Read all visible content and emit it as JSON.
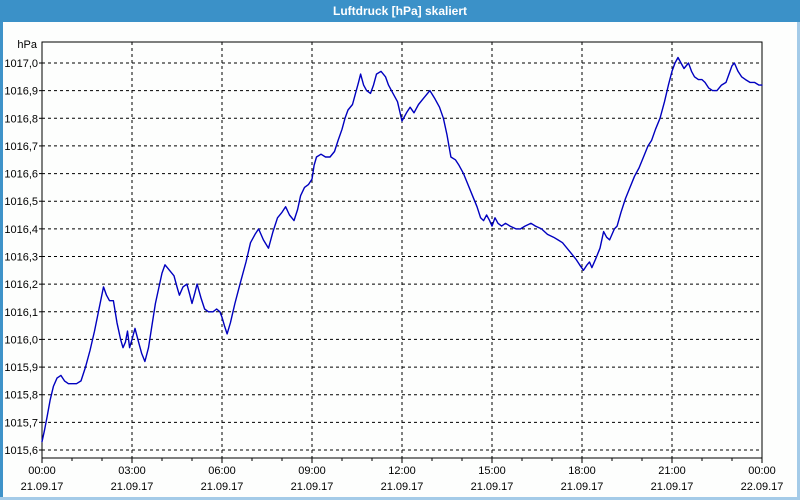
{
  "window": {
    "title": "Luftdruck [hPa] skaliert"
  },
  "colors": {
    "titlebar_bg": "#3b91c8",
    "titlebar_text": "#ffffff",
    "frame_left": "#3f93c9",
    "frame_light": "#a4cbe8",
    "chart_bg": "#fdfefd",
    "plot_border": "#000000",
    "grid": "#000000",
    "label_text": "#000000",
    "line": "#0000bf"
  },
  "chart_data": {
    "type": "line",
    "title": "Luftdruck [hPa] skaliert",
    "ylabel_unit": "hPa",
    "y_axis": {
      "ylim": [
        1015.6,
        1017.0
      ],
      "tick_step": 0.1,
      "decimal_separator": ",",
      "tick_labels": [
        "1015,6",
        "1015,7",
        "1015,8",
        "1015,9",
        "1016,0",
        "1016,1",
        "1016,2",
        "1016,3",
        "1016,4",
        "1016,5",
        "1016,6",
        "1016,7",
        "1016,8",
        "1016,9",
        "1017,0"
      ]
    },
    "x_axis": {
      "xlim_hours": [
        0,
        24
      ],
      "major_tick_every_hours": 3,
      "minor_tick_every_hours": 1,
      "ticks": [
        {
          "hour": 0,
          "time": "00:00",
          "date": "21.09.17"
        },
        {
          "hour": 3,
          "time": "03:00",
          "date": "21.09.17"
        },
        {
          "hour": 6,
          "time": "06:00",
          "date": "21.09.17"
        },
        {
          "hour": 9,
          "time": "09:00",
          "date": "21.09.17"
        },
        {
          "hour": 12,
          "time": "12:00",
          "date": "21.09.17"
        },
        {
          "hour": 15,
          "time": "15:00",
          "date": "21.09.17"
        },
        {
          "hour": 18,
          "time": "18:00",
          "date": "21.09.17"
        },
        {
          "hour": 21,
          "time": "21:00",
          "date": "21.09.17"
        },
        {
          "hour": 24,
          "time": "00:00",
          "date": "22.09.17"
        }
      ]
    },
    "grid": {
      "horizontal": true,
      "vertical": true,
      "style": "dashed"
    },
    "legend": "none",
    "series": [
      {
        "name": "Luftdruck",
        "color": "#0000bf",
        "points_hour_hpa": [
          [
            0,
            1015.63
          ],
          [
            0.08,
            1015.67
          ],
          [
            0.17,
            1015.72
          ],
          [
            0.27,
            1015.78
          ],
          [
            0.38,
            1015.83
          ],
          [
            0.5,
            1015.86
          ],
          [
            0.63,
            1015.87
          ],
          [
            0.75,
            1015.85
          ],
          [
            0.88,
            1015.84
          ],
          [
            1,
            1015.84
          ],
          [
            1.15,
            1015.84
          ],
          [
            1.3,
            1015.85
          ],
          [
            1.45,
            1015.9
          ],
          [
            1.6,
            1015.96
          ],
          [
            1.75,
            1016.03
          ],
          [
            1.9,
            1016.11
          ],
          [
            2.05,
            1016.19
          ],
          [
            2.15,
            1016.16
          ],
          [
            2.25,
            1016.14
          ],
          [
            2.38,
            1016.14
          ],
          [
            2.5,
            1016.06
          ],
          [
            2.62,
            1016.0
          ],
          [
            2.7,
            1015.97
          ],
          [
            2.78,
            1015.99
          ],
          [
            2.85,
            1016.03
          ],
          [
            2.92,
            1015.97
          ],
          [
            3.0,
            1016.0
          ],
          [
            3.1,
            1016.04
          ],
          [
            3.22,
            1015.99
          ],
          [
            3.32,
            1015.95
          ],
          [
            3.43,
            1015.92
          ],
          [
            3.55,
            1015.97
          ],
          [
            3.65,
            1016.04
          ],
          [
            3.78,
            1016.13
          ],
          [
            3.9,
            1016.19
          ],
          [
            4.0,
            1016.24
          ],
          [
            4.1,
            1016.27
          ],
          [
            4.25,
            1016.25
          ],
          [
            4.4,
            1016.23
          ],
          [
            4.5,
            1016.19
          ],
          [
            4.58,
            1016.16
          ],
          [
            4.7,
            1016.19
          ],
          [
            4.83,
            1016.2
          ],
          [
            4.93,
            1016.16
          ],
          [
            5.0,
            1016.13
          ],
          [
            5.1,
            1016.17
          ],
          [
            5.17,
            1016.2
          ],
          [
            5.3,
            1016.15
          ],
          [
            5.42,
            1016.11
          ],
          [
            5.55,
            1016.1
          ],
          [
            5.7,
            1016.1
          ],
          [
            5.82,
            1016.11
          ],
          [
            5.93,
            1016.1
          ],
          [
            6.0,
            1016.08
          ],
          [
            6.08,
            1016.05
          ],
          [
            6.17,
            1016.02
          ],
          [
            6.28,
            1016.06
          ],
          [
            6.43,
            1016.13
          ],
          [
            6.6,
            1016.2
          ],
          [
            6.8,
            1016.28
          ],
          [
            6.95,
            1016.35
          ],
          [
            7.1,
            1016.38
          ],
          [
            7.22,
            1016.4
          ],
          [
            7.38,
            1016.36
          ],
          [
            7.55,
            1016.33
          ],
          [
            7.7,
            1016.39
          ],
          [
            7.85,
            1016.44
          ],
          [
            8.0,
            1016.46
          ],
          [
            8.12,
            1016.48
          ],
          [
            8.25,
            1016.45
          ],
          [
            8.4,
            1016.43
          ],
          [
            8.52,
            1016.47
          ],
          [
            8.62,
            1016.52
          ],
          [
            8.75,
            1016.55
          ],
          [
            8.88,
            1016.56
          ],
          [
            9.0,
            1016.58
          ],
          [
            9.07,
            1016.63
          ],
          [
            9.15,
            1016.66
          ],
          [
            9.3,
            1016.67
          ],
          [
            9.45,
            1016.66
          ],
          [
            9.6,
            1016.66
          ],
          [
            9.75,
            1016.68
          ],
          [
            9.87,
            1016.72
          ],
          [
            10.0,
            1016.76
          ],
          [
            10.1,
            1016.8
          ],
          [
            10.2,
            1016.83
          ],
          [
            10.35,
            1016.85
          ],
          [
            10.45,
            1016.89
          ],
          [
            10.55,
            1016.93
          ],
          [
            10.62,
            1016.96
          ],
          [
            10.72,
            1016.92
          ],
          [
            10.82,
            1016.9
          ],
          [
            10.95,
            1016.89
          ],
          [
            11.05,
            1016.92
          ],
          [
            11.15,
            1016.96
          ],
          [
            11.3,
            1016.97
          ],
          [
            11.45,
            1016.95
          ],
          [
            11.55,
            1016.92
          ],
          [
            11.7,
            1016.89
          ],
          [
            11.85,
            1016.86
          ],
          [
            12.0,
            1016.79
          ],
          [
            12.15,
            1016.82
          ],
          [
            12.27,
            1016.84
          ],
          [
            12.4,
            1016.82
          ],
          [
            12.55,
            1016.85
          ],
          [
            12.7,
            1016.87
          ],
          [
            12.93,
            1016.9
          ],
          [
            13.1,
            1016.87
          ],
          [
            13.25,
            1016.84
          ],
          [
            13.38,
            1016.8
          ],
          [
            13.5,
            1016.74
          ],
          [
            13.63,
            1016.66
          ],
          [
            13.78,
            1016.65
          ],
          [
            13.9,
            1016.63
          ],
          [
            14.05,
            1016.6
          ],
          [
            14.2,
            1016.56
          ],
          [
            14.35,
            1016.52
          ],
          [
            14.5,
            1016.48
          ],
          [
            14.62,
            1016.44
          ],
          [
            14.72,
            1016.43
          ],
          [
            14.82,
            1016.45
          ],
          [
            14.92,
            1016.43
          ],
          [
            15.0,
            1016.41
          ],
          [
            15.1,
            1016.44
          ],
          [
            15.2,
            1016.42
          ],
          [
            15.32,
            1016.41
          ],
          [
            15.45,
            1016.42
          ],
          [
            15.6,
            1016.41
          ],
          [
            15.8,
            1016.4
          ],
          [
            15.95,
            1016.4
          ],
          [
            16.1,
            1016.41
          ],
          [
            16.3,
            1016.42
          ],
          [
            16.45,
            1016.41
          ],
          [
            16.65,
            1016.4
          ],
          [
            16.85,
            1016.38
          ],
          [
            17.05,
            1016.37
          ],
          [
            17.2,
            1016.36
          ],
          [
            17.35,
            1016.35
          ],
          [
            17.5,
            1016.33
          ],
          [
            17.65,
            1016.31
          ],
          [
            17.8,
            1016.29
          ],
          [
            17.92,
            1016.27
          ],
          [
            18.05,
            1016.25
          ],
          [
            18.17,
            1016.27
          ],
          [
            18.25,
            1016.28
          ],
          [
            18.33,
            1016.26
          ],
          [
            18.45,
            1016.29
          ],
          [
            18.6,
            1016.33
          ],
          [
            18.72,
            1016.39
          ],
          [
            18.82,
            1016.37
          ],
          [
            18.92,
            1016.36
          ],
          [
            19.0,
            1016.38
          ],
          [
            19.08,
            1016.4
          ],
          [
            19.17,
            1016.41
          ],
          [
            19.3,
            1016.46
          ],
          [
            19.45,
            1016.51
          ],
          [
            19.6,
            1016.55
          ],
          [
            19.75,
            1016.59
          ],
          [
            19.9,
            1016.62
          ],
          [
            20.05,
            1016.66
          ],
          [
            20.2,
            1016.7
          ],
          [
            20.32,
            1016.72
          ],
          [
            20.45,
            1016.76
          ],
          [
            20.6,
            1016.8
          ],
          [
            20.75,
            1016.86
          ],
          [
            20.88,
            1016.92
          ],
          [
            21.0,
            1016.97
          ],
          [
            21.1,
            1017.0
          ],
          [
            21.2,
            1017.02
          ],
          [
            21.3,
            1017.0
          ],
          [
            21.4,
            1016.98
          ],
          [
            21.55,
            1017.0
          ],
          [
            21.65,
            1016.97
          ],
          [
            21.75,
            1016.95
          ],
          [
            21.88,
            1016.94
          ],
          [
            22.0,
            1016.94
          ],
          [
            22.1,
            1016.93
          ],
          [
            22.22,
            1016.91
          ],
          [
            22.35,
            1016.9
          ],
          [
            22.5,
            1016.9
          ],
          [
            22.65,
            1016.92
          ],
          [
            22.8,
            1016.93
          ],
          [
            22.9,
            1016.96
          ],
          [
            23.0,
            1016.99
          ],
          [
            23.08,
            1017.0
          ],
          [
            23.2,
            1016.97
          ],
          [
            23.32,
            1016.95
          ],
          [
            23.45,
            1016.94
          ],
          [
            23.6,
            1016.93
          ],
          [
            23.75,
            1016.93
          ],
          [
            23.9,
            1016.92
          ],
          [
            24.0,
            1016.92
          ]
        ]
      }
    ]
  }
}
